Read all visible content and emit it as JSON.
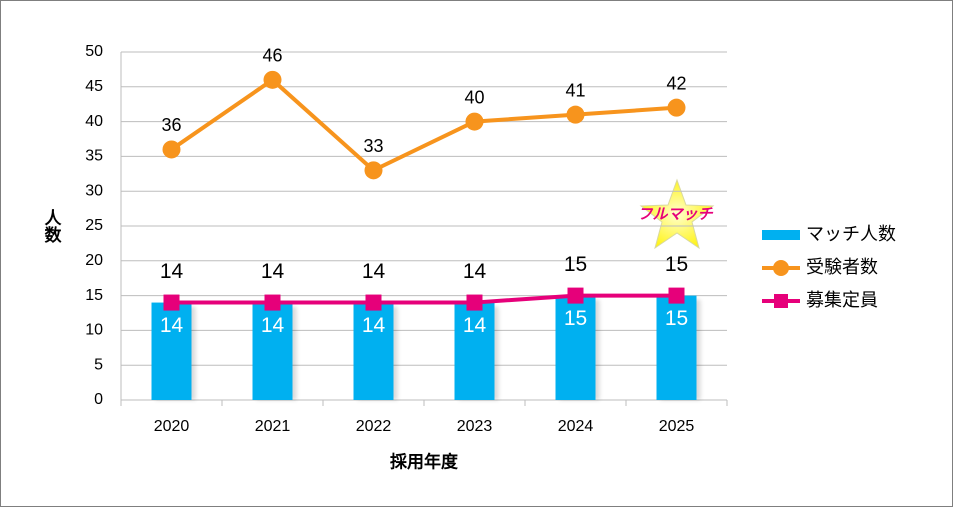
{
  "chart_data": {
    "type": "combo",
    "y_label": "人数",
    "x_label": "採用年度",
    "categories": [
      "2020",
      "2021",
      "2022",
      "2023",
      "2024",
      "2025"
    ],
    "ylim": [
      0,
      50
    ],
    "yticks": [
      0,
      5,
      10,
      15,
      20,
      25,
      30,
      35,
      40,
      45,
      50
    ],
    "grid": true,
    "legend": "right",
    "annotation": "フルマッチ",
    "series": [
      {
        "name": "マッチ人数",
        "type": "bar",
        "color": "#00b0f0",
        "values": [
          14,
          14,
          14,
          14,
          15,
          15
        ]
      },
      {
        "name": "受験者数",
        "type": "line",
        "color": "#f7941d",
        "values": [
          36,
          46,
          33,
          40,
          41,
          42
        ]
      },
      {
        "name": "募集定員",
        "type": "line",
        "color": "#e6007a",
        "values": [
          14,
          14,
          14,
          14,
          15,
          15
        ]
      }
    ]
  }
}
